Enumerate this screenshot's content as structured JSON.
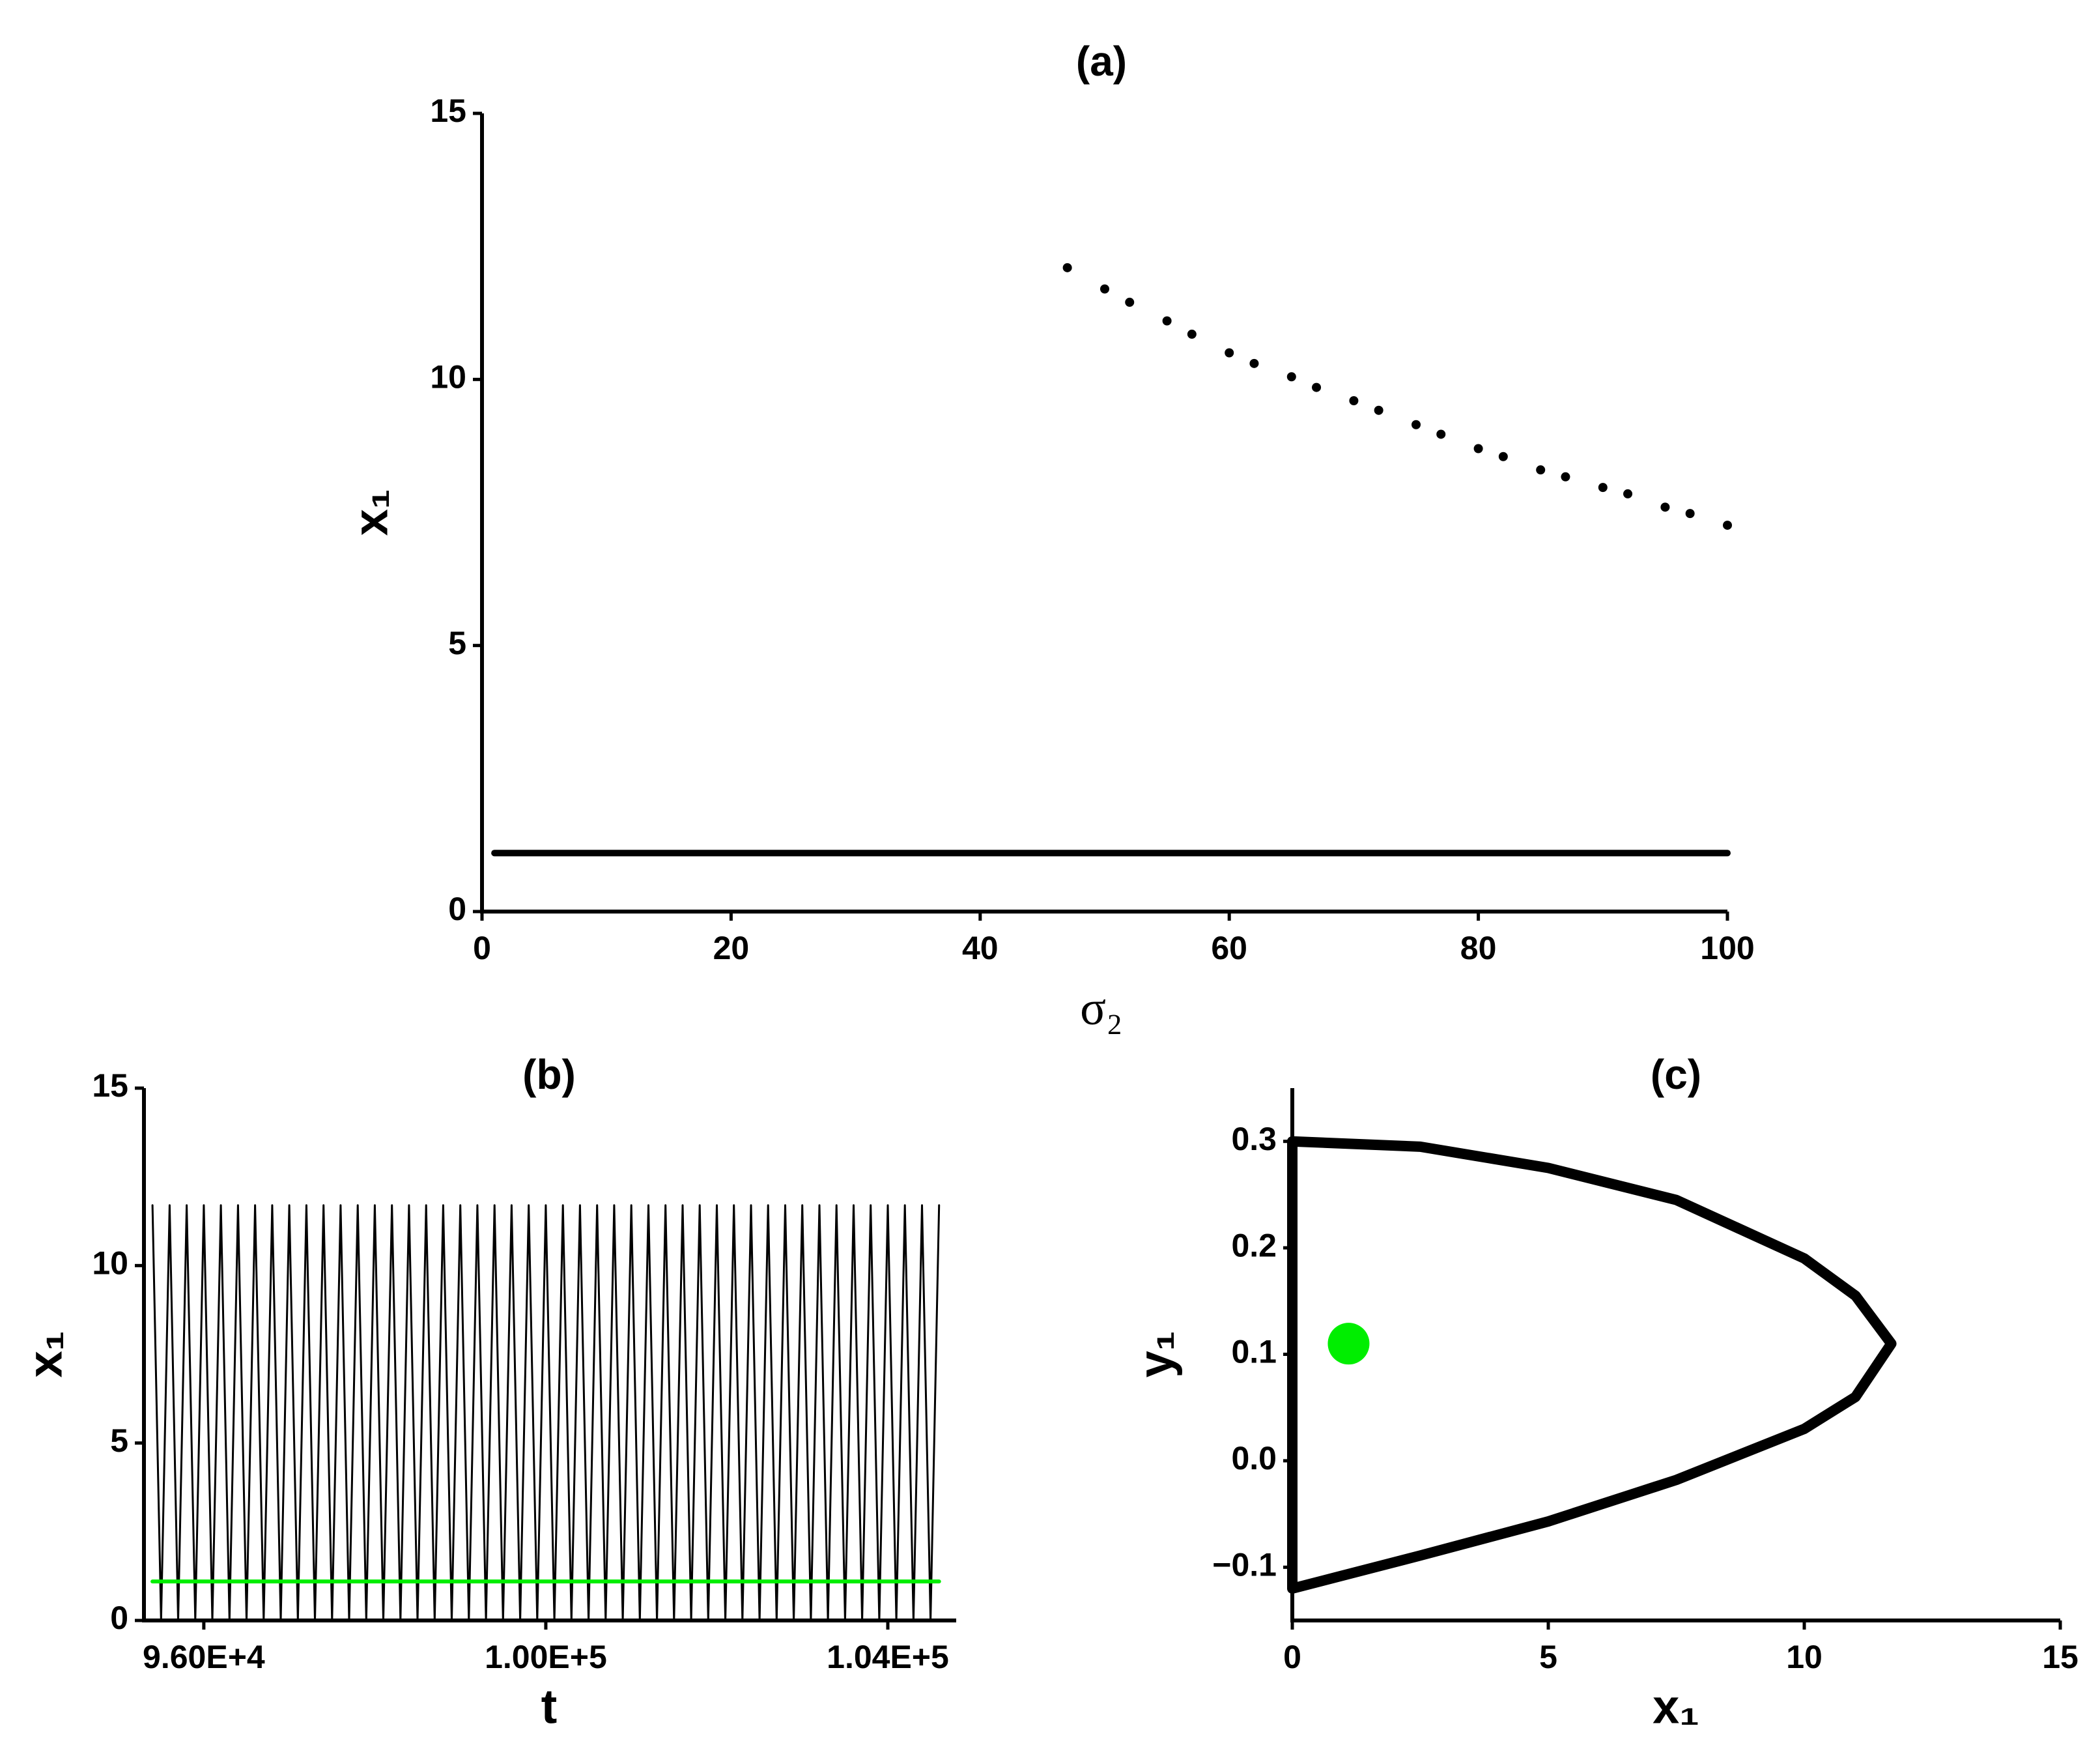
{
  "chart_data": [
    {
      "type": "scatter",
      "title": "(a)",
      "x_label": "σ₂",
      "y_label": "x₁",
      "xlim": [
        0,
        100
      ],
      "ylim": [
        0,
        15
      ],
      "xticks": [
        0,
        20,
        40,
        60,
        80,
        100
      ],
      "yticks": [
        0,
        5,
        10,
        15
      ],
      "series": [
        {
          "color": "#000000",
          "style": "points",
          "x": [
            47,
            50,
            52,
            55,
            57,
            60,
            62,
            65,
            67,
            70,
            72,
            75,
            77,
            80,
            82,
            85,
            87,
            90,
            92,
            95,
            97,
            100
          ],
          "values": [
            12.1,
            11.7,
            11.45,
            11.1,
            10.85,
            10.5,
            10.3,
            10.05,
            9.85,
            9.6,
            9.42,
            9.15,
            8.97,
            8.7,
            8.55,
            8.3,
            8.17,
            7.97,
            7.85,
            7.6,
            7.48,
            7.26
          ]
        },
        {
          "color": "#000000",
          "style": "line",
          "x": [
            1,
            100
          ],
          "values": [
            1.1,
            1.1
          ]
        }
      ]
    },
    {
      "type": "line",
      "title": "(b)",
      "x_label": "t",
      "y_label": "x₁",
      "xlim": [
        95300,
        104800
      ],
      "ylim": [
        0,
        15
      ],
      "xticks": [
        {
          "value": 96000,
          "label": "9.60E+4"
        },
        {
          "value": 100000,
          "label": "1.00E+5"
        },
        {
          "value": 104000,
          "label": "1.04E+5"
        }
      ],
      "yticks": [
        0,
        5,
        10,
        15
      ],
      "series": [
        {
          "color": "#000000",
          "style": "line",
          "x": [
            95400,
            95500,
            95600,
            95700,
            95800,
            95900,
            96000,
            96100,
            96200,
            96300,
            96400,
            96500,
            96600,
            96700,
            96800,
            96900,
            97000,
            97100,
            97200,
            97300,
            97400,
            97500,
            97600,
            97700,
            97800,
            97900,
            98000,
            98100,
            98200,
            98300,
            98400,
            98500,
            98600,
            98700,
            98800,
            98900,
            99000,
            99100,
            99200,
            99300,
            99400,
            99500,
            99600,
            99700,
            99800,
            99900,
            100000,
            100100,
            100200,
            100300,
            100400,
            100500,
            100600,
            100700,
            100800,
            100900,
            101000,
            101100,
            101200,
            101300,
            101400,
            101500,
            101600,
            101700,
            101800,
            101900,
            102000,
            102100,
            102200,
            102300,
            102400,
            102500,
            102600,
            102700,
            102800,
            102900,
            103000,
            103100,
            103200,
            103300,
            103400,
            103500,
            103600,
            103700,
            103800,
            103900,
            104000,
            104100,
            104200,
            104300,
            104400,
            104500,
            104600
          ],
          "values": [
            11.7,
            0,
            11.7,
            0,
            11.7,
            0,
            11.7,
            0,
            11.7,
            0,
            11.7,
            0,
            11.7,
            0,
            11.7,
            0,
            11.7,
            0,
            11.7,
            0,
            11.7,
            0,
            11.7,
            0,
            11.7,
            0,
            11.7,
            0,
            11.7,
            0,
            11.7,
            0,
            11.7,
            0,
            11.7,
            0,
            11.7,
            0,
            11.7,
            0,
            11.7,
            0,
            11.7,
            0,
            11.7,
            0,
            11.7,
            0,
            11.7,
            0,
            11.7,
            0,
            11.7,
            0,
            11.7,
            0,
            11.7,
            0,
            11.7,
            0,
            11.7,
            0,
            11.7,
            0,
            11.7,
            0,
            11.7,
            0,
            11.7,
            0,
            11.7,
            0,
            11.7,
            0,
            11.7,
            0,
            11.7,
            0,
            11.7,
            0,
            11.7,
            0,
            11.7,
            0,
            11.7,
            0,
            11.7,
            0,
            11.7,
            0,
            11.7,
            0,
            11.7
          ]
        },
        {
          "color": "#00ee00",
          "style": "line",
          "x": [
            95400,
            104600
          ],
          "values": [
            1.1,
            1.1
          ]
        }
      ]
    },
    {
      "type": "line",
      "title": "(c)",
      "x_label": "x₁",
      "y_label": "y₁",
      "xlim": [
        0,
        15
      ],
      "ylim": [
        -0.15,
        0.35
      ],
      "xticks": [
        0,
        5,
        10,
        15
      ],
      "yticks": [
        {
          "value": -0.1,
          "label": "−0.1"
        },
        {
          "value": 0,
          "label": "0.0"
        },
        0.1,
        0.2,
        0.3
      ],
      "series": [
        {
          "color": "#000000",
          "style": "line",
          "x": [
            0,
            2.5,
            5,
            7.5,
            10,
            11,
            11.7,
            11,
            10,
            7.5,
            5,
            2.5,
            0,
            0
          ],
          "values": [
            0.3,
            0.295,
            0.275,
            0.245,
            0.19,
            0.155,
            0.11,
            0.06,
            0.03,
            -0.018,
            -0.057,
            -0.089,
            -0.12,
            0.3
          ]
        },
        {
          "color": "#00ee00",
          "style": "points",
          "x": [
            1.1
          ],
          "values": [
            0.11
          ]
        }
      ]
    }
  ]
}
